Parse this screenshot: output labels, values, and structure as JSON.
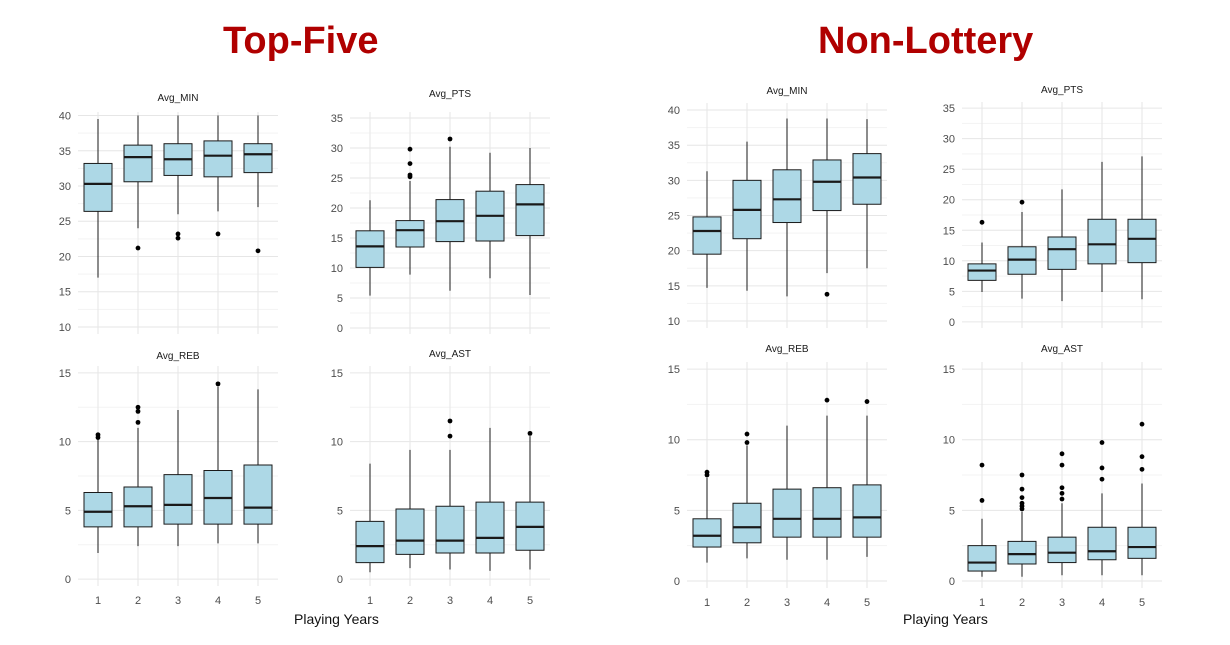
{
  "groups": [
    {
      "title": "Top-Five",
      "xlabel": "Playing Years"
    },
    {
      "title": "Non-Lottery",
      "xlabel": "Playing Years"
    }
  ],
  "chart_data": [
    {
      "type": "box",
      "group": "Top-Five",
      "title": "Avg_MIN",
      "categories": [
        "1",
        "2",
        "3",
        "4",
        "5"
      ],
      "ylim": [
        9,
        40.5
      ],
      "yticks": [
        10,
        15,
        20,
        25,
        30,
        35,
        40
      ],
      "grid": true,
      "box_fill": "#add8e6",
      "boxes": [
        {
          "x": "1",
          "lower_whisker": 17.0,
          "q1": 26.4,
          "median": 30.3,
          "q3": 33.2,
          "upper_whisker": 39.5,
          "outliers": []
        },
        {
          "x": "2",
          "lower_whisker": 24.0,
          "q1": 30.6,
          "median": 34.1,
          "q3": 35.8,
          "upper_whisker": 40.0,
          "outliers": [
            21.2
          ]
        },
        {
          "x": "3",
          "lower_whisker": 26.0,
          "q1": 31.5,
          "median": 33.8,
          "q3": 36.0,
          "upper_whisker": 40.0,
          "outliers": [
            23.2,
            22.6
          ]
        },
        {
          "x": "4",
          "lower_whisker": 26.4,
          "q1": 31.3,
          "median": 34.3,
          "q3": 36.4,
          "upper_whisker": 40.0,
          "outliers": [
            23.2
          ]
        },
        {
          "x": "5",
          "lower_whisker": 27.0,
          "q1": 31.9,
          "median": 34.5,
          "q3": 36.0,
          "upper_whisker": 40.0,
          "outliers": [
            20.8
          ]
        }
      ]
    },
    {
      "type": "box",
      "group": "Top-Five",
      "title": "Avg_PTS",
      "categories": [
        "1",
        "2",
        "3",
        "4",
        "5"
      ],
      "ylim": [
        -1,
        36
      ],
      "yticks": [
        0,
        5,
        10,
        15,
        20,
        25,
        30,
        35
      ],
      "grid": true,
      "box_fill": "#add8e6",
      "boxes": [
        {
          "x": "1",
          "lower_whisker": 5.4,
          "q1": 10.1,
          "median": 13.6,
          "q3": 16.2,
          "upper_whisker": 21.3,
          "outliers": []
        },
        {
          "x": "2",
          "lower_whisker": 8.9,
          "q1": 13.5,
          "median": 16.3,
          "q3": 17.9,
          "upper_whisker": 24.5,
          "outliers": [
            25.2,
            25.5,
            27.4,
            29.8
          ]
        },
        {
          "x": "3",
          "lower_whisker": 6.2,
          "q1": 14.4,
          "median": 17.8,
          "q3": 21.4,
          "upper_whisker": 30.2,
          "outliers": [
            31.5
          ]
        },
        {
          "x": "4",
          "lower_whisker": 8.3,
          "q1": 14.5,
          "median": 18.7,
          "q3": 22.8,
          "upper_whisker": 29.2,
          "outliers": []
        },
        {
          "x": "5",
          "lower_whisker": 5.5,
          "q1": 15.4,
          "median": 20.6,
          "q3": 23.9,
          "upper_whisker": 30.0,
          "outliers": []
        }
      ]
    },
    {
      "type": "box",
      "group": "Top-Five",
      "title": "Avg_REB",
      "categories": [
        "1",
        "2",
        "3",
        "4",
        "5"
      ],
      "ylim": [
        -0.5,
        15.5
      ],
      "yticks": [
        0,
        5,
        10,
        15
      ],
      "grid": true,
      "box_fill": "#add8e6",
      "boxes": [
        {
          "x": "1",
          "lower_whisker": 1.9,
          "q1": 3.8,
          "median": 4.9,
          "q3": 6.3,
          "upper_whisker": 10.2,
          "outliers": [
            10.3,
            10.5
          ]
        },
        {
          "x": "2",
          "lower_whisker": 2.4,
          "q1": 3.8,
          "median": 5.3,
          "q3": 6.7,
          "upper_whisker": 11.0,
          "outliers": [
            11.4,
            12.2,
            12.5
          ]
        },
        {
          "x": "3",
          "lower_whisker": 2.4,
          "q1": 4.0,
          "median": 5.4,
          "q3": 7.6,
          "upper_whisker": 12.3,
          "outliers": []
        },
        {
          "x": "4",
          "lower_whisker": 2.6,
          "q1": 4.0,
          "median": 5.9,
          "q3": 7.9,
          "upper_whisker": 14.0,
          "outliers": [
            14.2
          ]
        },
        {
          "x": "5",
          "lower_whisker": 2.6,
          "q1": 4.0,
          "median": 5.2,
          "q3": 8.3,
          "upper_whisker": 13.8,
          "outliers": []
        }
      ]
    },
    {
      "type": "box",
      "group": "Top-Five",
      "title": "Avg_AST",
      "categories": [
        "1",
        "2",
        "3",
        "4",
        "5"
      ],
      "ylim": [
        -0.5,
        15.5
      ],
      "yticks": [
        0,
        5,
        10,
        15
      ],
      "grid": true,
      "box_fill": "#add8e6",
      "boxes": [
        {
          "x": "1",
          "lower_whisker": 0.5,
          "q1": 1.2,
          "median": 2.4,
          "q3": 4.2,
          "upper_whisker": 8.4,
          "outliers": []
        },
        {
          "x": "2",
          "lower_whisker": 0.8,
          "q1": 1.8,
          "median": 2.8,
          "q3": 5.1,
          "upper_whisker": 9.4,
          "outliers": []
        },
        {
          "x": "3",
          "lower_whisker": 0.7,
          "q1": 1.9,
          "median": 2.8,
          "q3": 5.3,
          "upper_whisker": 9.4,
          "outliers": [
            10.4,
            11.5
          ]
        },
        {
          "x": "4",
          "lower_whisker": 0.6,
          "q1": 1.9,
          "median": 3.0,
          "q3": 5.6,
          "upper_whisker": 11.0,
          "outliers": []
        },
        {
          "x": "5",
          "lower_whisker": 0.7,
          "q1": 2.1,
          "median": 3.8,
          "q3": 5.6,
          "upper_whisker": 10.4,
          "outliers": [
            10.6
          ]
        }
      ]
    },
    {
      "type": "box",
      "group": "Non-Lottery",
      "title": "Avg_MIN",
      "categories": [
        "1",
        "2",
        "3",
        "4",
        "5"
      ],
      "ylim": [
        9,
        41
      ],
      "yticks": [
        10,
        15,
        20,
        25,
        30,
        35,
        40
      ],
      "grid": true,
      "box_fill": "#add8e6",
      "boxes": [
        {
          "x": "1",
          "lower_whisker": 14.7,
          "q1": 19.5,
          "median": 22.8,
          "q3": 24.8,
          "upper_whisker": 31.3,
          "outliers": []
        },
        {
          "x": "2",
          "lower_whisker": 14.3,
          "q1": 21.7,
          "median": 25.8,
          "q3": 30.0,
          "upper_whisker": 35.5,
          "outliers": []
        },
        {
          "x": "3",
          "lower_whisker": 13.5,
          "q1": 24.0,
          "median": 27.3,
          "q3": 31.5,
          "upper_whisker": 38.8,
          "outliers": []
        },
        {
          "x": "4",
          "lower_whisker": 16.8,
          "q1": 25.7,
          "median": 29.8,
          "q3": 32.9,
          "upper_whisker": 38.8,
          "outliers": [
            13.8
          ]
        },
        {
          "x": "5",
          "lower_whisker": 17.5,
          "q1": 26.6,
          "median": 30.4,
          "q3": 33.8,
          "upper_whisker": 38.7,
          "outliers": []
        }
      ]
    },
    {
      "type": "box",
      "group": "Non-Lottery",
      "title": "Avg_PTS",
      "categories": [
        "1",
        "2",
        "3",
        "4",
        "5"
      ],
      "ylim": [
        -1,
        36
      ],
      "yticks": [
        0,
        5,
        10,
        15,
        20,
        25,
        30,
        35
      ],
      "grid": true,
      "box_fill": "#add8e6",
      "boxes": [
        {
          "x": "1",
          "lower_whisker": 4.9,
          "q1": 6.8,
          "median": 8.4,
          "q3": 9.5,
          "upper_whisker": 13.0,
          "outliers": [
            16.3
          ]
        },
        {
          "x": "2",
          "lower_whisker": 3.8,
          "q1": 7.8,
          "median": 10.2,
          "q3": 12.3,
          "upper_whisker": 18.0,
          "outliers": [
            19.6
          ]
        },
        {
          "x": "3",
          "lower_whisker": 3.4,
          "q1": 8.6,
          "median": 11.9,
          "q3": 13.9,
          "upper_whisker": 21.7,
          "outliers": []
        },
        {
          "x": "4",
          "lower_whisker": 4.9,
          "q1": 9.5,
          "median": 12.7,
          "q3": 16.8,
          "upper_whisker": 26.2,
          "outliers": []
        },
        {
          "x": "5",
          "lower_whisker": 3.7,
          "q1": 9.7,
          "median": 13.6,
          "q3": 16.8,
          "upper_whisker": 27.1,
          "outliers": []
        }
      ]
    },
    {
      "type": "box",
      "group": "Non-Lottery",
      "title": "Avg_REB",
      "categories": [
        "1",
        "2",
        "3",
        "4",
        "5"
      ],
      "ylim": [
        -0.5,
        15.5
      ],
      "yticks": [
        0,
        5,
        10,
        15
      ],
      "grid": true,
      "box_fill": "#add8e6",
      "boxes": [
        {
          "x": "1",
          "lower_whisker": 1.3,
          "q1": 2.4,
          "median": 3.2,
          "q3": 4.4,
          "upper_whisker": 7.3,
          "outliers": [
            7.5,
            7.7
          ]
        },
        {
          "x": "2",
          "lower_whisker": 1.6,
          "q1": 2.7,
          "median": 3.8,
          "q3": 5.5,
          "upper_whisker": 9.6,
          "outliers": [
            9.8,
            10.4
          ]
        },
        {
          "x": "3",
          "lower_whisker": 1.5,
          "q1": 3.1,
          "median": 4.4,
          "q3": 6.5,
          "upper_whisker": 11.0,
          "outliers": []
        },
        {
          "x": "4",
          "lower_whisker": 1.5,
          "q1": 3.1,
          "median": 4.4,
          "q3": 6.6,
          "upper_whisker": 11.7,
          "outliers": [
            12.8
          ]
        },
        {
          "x": "5",
          "lower_whisker": 1.7,
          "q1": 3.1,
          "median": 4.5,
          "q3": 6.8,
          "upper_whisker": 11.7,
          "outliers": [
            12.7
          ]
        }
      ]
    },
    {
      "type": "box",
      "group": "Non-Lottery",
      "title": "Avg_AST",
      "categories": [
        "1",
        "2",
        "3",
        "4",
        "5"
      ],
      "ylim": [
        -0.5,
        15.5
      ],
      "yticks": [
        0,
        5,
        10,
        15
      ],
      "grid": true,
      "box_fill": "#add8e6",
      "boxes": [
        {
          "x": "1",
          "lower_whisker": 0.3,
          "q1": 0.7,
          "median": 1.3,
          "q3": 2.5,
          "upper_whisker": 4.4,
          "outliers": [
            5.7,
            8.2
          ]
        },
        {
          "x": "2",
          "lower_whisker": 0.3,
          "q1": 1.2,
          "median": 1.9,
          "q3": 2.8,
          "upper_whisker": 4.9,
          "outliers": [
            5.1,
            5.3,
            5.5,
            5.9,
            6.5,
            7.5
          ]
        },
        {
          "x": "3",
          "lower_whisker": 0.4,
          "q1": 1.3,
          "median": 2.0,
          "q3": 3.1,
          "upper_whisker": 5.5,
          "outliers": [
            5.8,
            6.2,
            6.6,
            8.2,
            9.0
          ]
        },
        {
          "x": "4",
          "lower_whisker": 0.4,
          "q1": 1.5,
          "median": 2.1,
          "q3": 3.8,
          "upper_whisker": 6.2,
          "outliers": [
            7.2,
            8.0,
            9.8
          ]
        },
        {
          "x": "5",
          "lower_whisker": 0.4,
          "q1": 1.6,
          "median": 2.4,
          "q3": 3.8,
          "upper_whisker": 6.9,
          "outliers": [
            7.9,
            8.8,
            11.1
          ]
        }
      ]
    }
  ]
}
